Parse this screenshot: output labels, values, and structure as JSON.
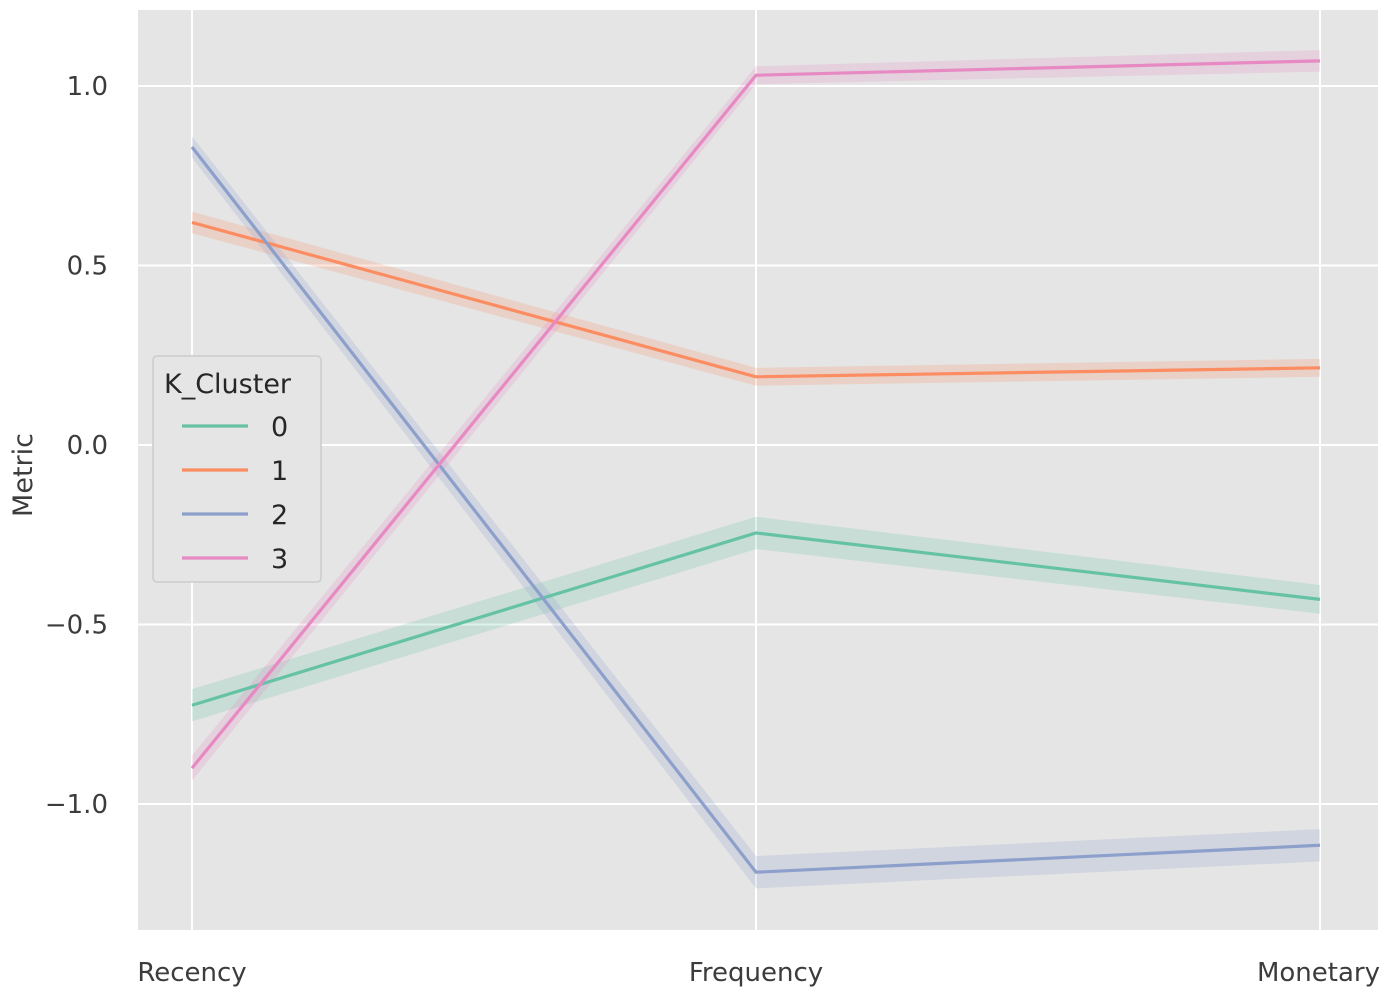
{
  "chart_data": {
    "type": "line",
    "categories": [
      "Recency",
      "Frequency",
      "Monetary"
    ],
    "ylabel": "Metric",
    "xlabel": "",
    "ylim": [
      -1.35,
      1.22
    ],
    "yticks": [
      {
        "value": 1.0,
        "label": "1.0"
      },
      {
        "value": 0.5,
        "label": "0.5"
      },
      {
        "value": 0.0,
        "label": "0.0"
      },
      {
        "value": -0.5,
        "label": "−0.5"
      },
      {
        "value": -1.0,
        "label": "−1.0"
      }
    ],
    "grid": true,
    "background": "#e5e5e5",
    "legend": {
      "title": "K_Cluster",
      "placement": "center-left"
    },
    "series": [
      {
        "name": "0",
        "color": "#66c2a5",
        "values": [
          -0.725,
          -0.245,
          -0.43
        ],
        "ci": [
          0.045,
          0.045,
          0.04
        ]
      },
      {
        "name": "1",
        "color": "#fc8d62",
        "values": [
          0.62,
          0.19,
          0.215
        ],
        "ci": [
          0.03,
          0.025,
          0.025
        ]
      },
      {
        "name": "2",
        "color": "#8da0cb",
        "values": [
          0.83,
          -1.19,
          -1.115
        ],
        "ci": [
          0.03,
          0.045,
          0.045
        ]
      },
      {
        "name": "3",
        "color": "#e78ac3",
        "values": [
          -0.9,
          1.03,
          1.07
        ],
        "ci": [
          0.035,
          0.025,
          0.03
        ]
      }
    ]
  }
}
